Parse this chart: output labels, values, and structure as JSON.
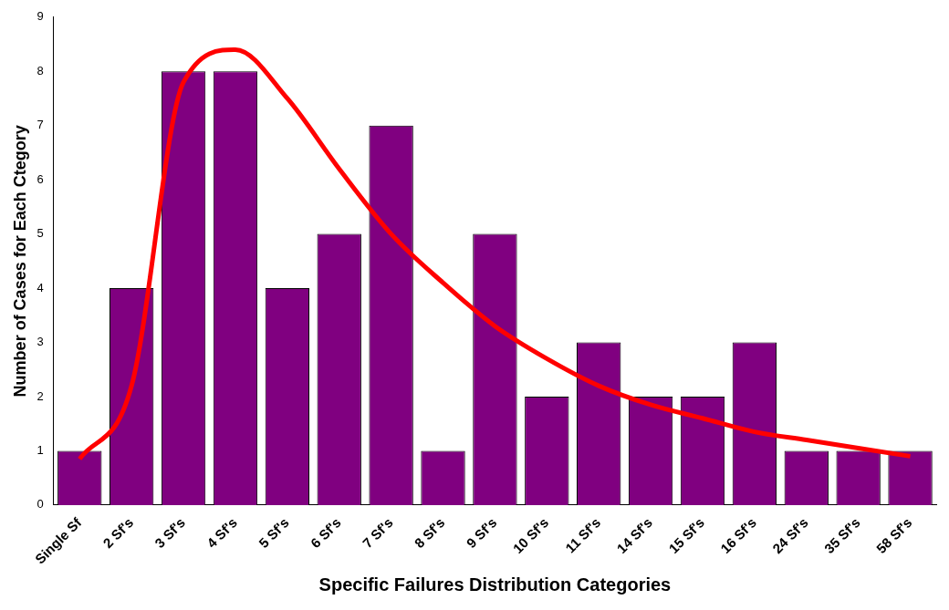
{
  "chart_data": {
    "type": "bar",
    "xlabel": "Specific Failures Distribution Categories",
    "ylabel": "Number of Cases for Each Ctegory",
    "categories": [
      "Single Sf",
      "2 Sf's",
      "3 Sf's",
      "4 Sf's",
      "5 Sf's",
      "6 Sf's",
      "7 Sf's",
      "8 Sf's",
      "9 Sf's",
      "10 Sf's",
      "11 Sf's",
      "14 Sf's",
      "15 Sf's",
      "16 Sf's",
      "24 Sf's",
      "35 Sf's",
      "58 Sf's"
    ],
    "ylim": [
      0,
      9
    ],
    "yticks": [
      0,
      1,
      2,
      3,
      4,
      5,
      6,
      7,
      8,
      9
    ],
    "grid": false,
    "legend": false,
    "series": [
      {
        "color": "#800080",
        "values": [
          1,
          4,
          8,
          8,
          4,
          5,
          7,
          1,
          5,
          2,
          3,
          2,
          2,
          3,
          1,
          1,
          1
        ]
      },
      {
        "type": "line",
        "color": "#ff0000",
        "marker": "none",
        "line_style": "solid",
        "values": [
          0.85,
          2.2,
          7.8,
          8.4,
          7.5,
          6.2,
          5.0,
          4.1,
          3.3,
          2.7,
          2.2,
          1.85,
          1.6,
          1.35,
          1.2,
          1.05,
          0.9
        ]
      }
    ]
  }
}
